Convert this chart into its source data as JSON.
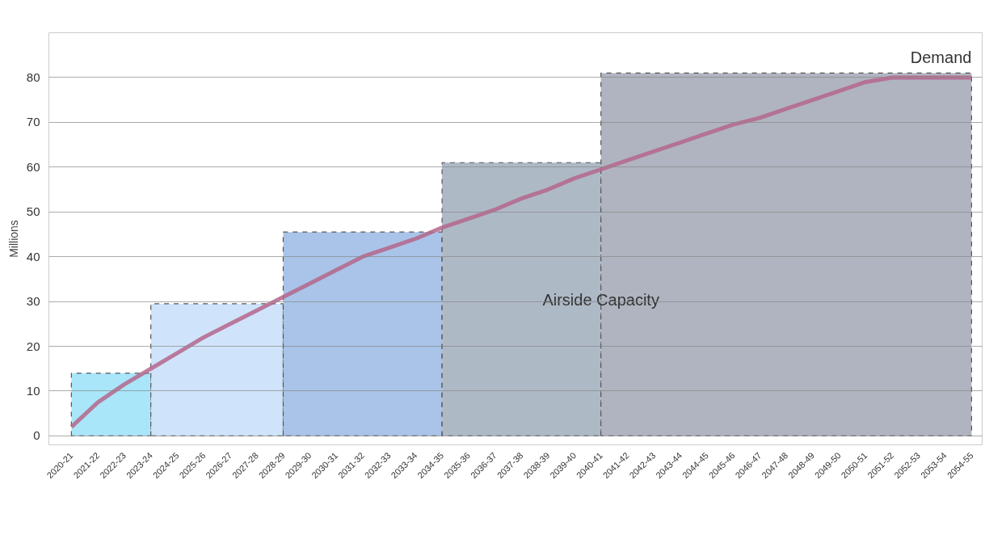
{
  "chart_data": {
    "type": "area",
    "ylabel": "Millions",
    "categories": [
      "2020-21",
      "2021-22",
      "2022-23",
      "2023-24",
      "2024-25",
      "2025-26",
      "2026-27",
      "2027-28",
      "2028-29",
      "2029-30",
      "2030-31",
      "2031-32",
      "2032-33",
      "2033-34",
      "2034-35",
      "2035-36",
      "2036-37",
      "2037-38",
      "2038-39",
      "2039-40",
      "2040-41",
      "2041-42",
      "2042-43",
      "2043-44",
      "2044-45",
      "2045-46",
      "2046-47",
      "2047-48",
      "2048-49",
      "2049-50",
      "2050-51",
      "2051-52",
      "2052-53",
      "2053-54",
      "2054-55"
    ],
    "series": [
      {
        "color": "#a9e6f9",
        "values": [
          14,
          14,
          14,
          14,
          null,
          null,
          null,
          null,
          null,
          null,
          null,
          null,
          null,
          null,
          null,
          null,
          null,
          null,
          null,
          null,
          null,
          null,
          null,
          null,
          null,
          null,
          null,
          null,
          null,
          null,
          null,
          null,
          null,
          null,
          null
        ]
      },
      {
        "color": "#cfe4fa",
        "values": [
          null,
          null,
          null,
          29.5,
          29.5,
          29.5,
          29.5,
          29.5,
          29.5,
          null,
          null,
          null,
          null,
          null,
          null,
          null,
          null,
          null,
          null,
          null,
          null,
          null,
          null,
          null,
          null,
          null,
          null,
          null,
          null,
          null,
          null,
          null,
          null,
          null,
          null
        ]
      },
      {
        "color": "#a9c4e8",
        "values": [
          null,
          null,
          null,
          null,
          null,
          null,
          null,
          null,
          45.5,
          45.5,
          45.5,
          45.5,
          45.5,
          45.5,
          45.5,
          null,
          null,
          null,
          null,
          null,
          null,
          null,
          null,
          null,
          null,
          null,
          null,
          null,
          null,
          null,
          null,
          null,
          null,
          null,
          null
        ]
      },
      {
        "color": "#aeb9c6",
        "values": [
          null,
          null,
          null,
          null,
          null,
          null,
          null,
          null,
          null,
          null,
          null,
          null,
          null,
          null,
          61,
          61,
          61,
          61,
          61,
          61,
          61,
          null,
          null,
          null,
          null,
          null,
          null,
          null,
          null,
          null,
          null,
          null,
          null,
          null,
          null
        ]
      },
      {
        "name": "Airside Capacity",
        "color": "#b0b4c0",
        "values": [
          null,
          null,
          null,
          null,
          null,
          null,
          null,
          null,
          null,
          null,
          null,
          null,
          null,
          null,
          null,
          null,
          null,
          null,
          null,
          null,
          81,
          81,
          81,
          81,
          81,
          81,
          81,
          81,
          81,
          81,
          81,
          81,
          81,
          81,
          81
        ]
      },
      {
        "name": "Demand",
        "type": "line",
        "color": "#b5668c",
        "values": [
          2,
          7.5,
          11.5,
          15,
          18.5,
          22,
          25,
          28,
          31,
          34,
          37,
          40,
          42,
          44,
          46.5,
          48.5,
          50.5,
          53,
          55,
          57.5,
          59.5,
          61.5,
          63.5,
          65.5,
          67.5,
          69.5,
          71,
          73,
          75,
          77,
          79,
          80,
          80,
          80,
          80
        ]
      }
    ],
    "ylim": [
      -2,
      90
    ],
    "yticks": [
      0,
      10,
      20,
      30,
      40,
      50,
      60,
      70,
      80
    ],
    "grid": "y"
  }
}
